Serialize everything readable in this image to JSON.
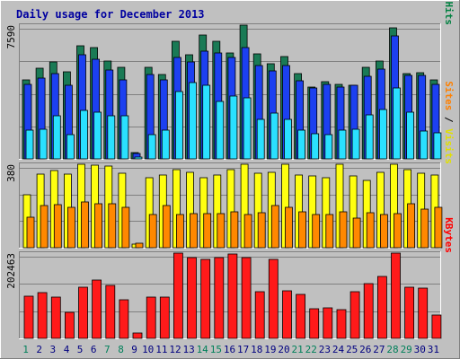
{
  "chart_data": {
    "type": "bar",
    "title": "Daily usage for December 2013",
    "categories": [
      "1",
      "2",
      "3",
      "4",
      "5",
      "6",
      "7",
      "8",
      "9",
      "10",
      "11",
      "12",
      "13",
      "14",
      "15",
      "16",
      "17",
      "18",
      "19",
      "20",
      "21",
      "22",
      "23",
      "24",
      "25",
      "26",
      "27",
      "28",
      "29",
      "30",
      "31"
    ],
    "weekend_days": [
      "1",
      "7",
      "8",
      "14",
      "15",
      "21",
      "22",
      "28",
      "29"
    ],
    "panels": [
      {
        "id": "hits-files-pages",
        "ylim": [
          0,
          7590
        ],
        "max_label": "7590",
        "axis_label_parts": [
          {
            "text": "Pages",
            "color": "#00e0ff"
          },
          {
            "text": " / ",
            "color": "#000000"
          },
          {
            "text": "Files",
            "color": "#0040ff"
          },
          {
            "text": " / ",
            "color": "#000000"
          },
          {
            "text": "Hits",
            "color": "#008040"
          }
        ],
        "series": [
          {
            "name": "Hits",
            "color": "#1a7a55",
            "values": [
              4500,
              5150,
              5500,
              4950,
              6400,
              6300,
              5550,
              5200,
              380,
              5200,
              4800,
              6650,
              5900,
              7050,
              6650,
              6000,
              7590,
              5950,
              5400,
              5800,
              4850,
              4050,
              4400,
              4250,
              4200,
              5200,
              5550,
              7450,
              4850,
              4900,
              4500
            ]
          },
          {
            "name": "Files",
            "color": "#1c40f0",
            "values": [
              4250,
              4600,
              4850,
              4200,
              5900,
              5650,
              5050,
              4500,
              330,
              4800,
              4500,
              5750,
              5500,
              6100,
              6000,
              5750,
              6300,
              5300,
              5000,
              5300,
              4450,
              4000,
              4250,
              4100,
              4200,
              4700,
              5100,
              7000,
              4750,
              4750,
              4250
            ]
          },
          {
            "name": "Pages",
            "color": "#2ae0ff",
            "values": [
              1650,
              1700,
              2450,
              1400,
              2750,
              2650,
              2450,
              2450,
              110,
              1400,
              1650,
              3800,
              4350,
              4200,
              3250,
              3550,
              3450,
              2250,
              2600,
              2250,
              1650,
              1450,
              1400,
              1650,
              1700,
              2500,
              2800,
              4000,
              2650,
              1600,
              1500
            ]
          }
        ]
      },
      {
        "id": "visits-sites",
        "ylim": [
          0,
          380
        ],
        "max_label": "380",
        "axis_label_parts": [
          {
            "text": "Sites",
            "color": "#ff8000"
          },
          {
            "text": " / ",
            "color": "#000000"
          },
          {
            "text": "Visits",
            "color": "#e0e000"
          }
        ],
        "series": [
          {
            "name": "Visits",
            "color": "#ffff10",
            "values": [
              240,
              335,
              350,
              335,
              380,
              375,
              370,
              340,
              17,
              320,
              330,
              355,
              345,
              320,
              330,
              355,
              380,
              340,
              345,
              380,
              330,
              325,
              320,
              380,
              325,
              305,
              345,
              380,
              355,
              340,
              330
            ]
          },
          {
            "name": "Sites",
            "color": "#ff8800",
            "values": [
              138,
              190,
              195,
              185,
              210,
              200,
              200,
              185,
              20,
              150,
              190,
              150,
              155,
              155,
              155,
              165,
              150,
              160,
              190,
              185,
              165,
              150,
              150,
              165,
              135,
              160,
              150,
              155,
              200,
              175,
              185
            ]
          }
        ]
      },
      {
        "id": "kbytes",
        "ylim": [
          0,
          202463
        ],
        "max_label": "202463",
        "axis_label_parts": [
          {
            "text": "KBytes",
            "color": "#ff0000"
          }
        ],
        "series": [
          {
            "name": "KBytes",
            "color": "#ff1a1a",
            "values": [
              100500,
              108000,
              97600,
              62000,
              121200,
              138000,
              126300,
              92300,
              12000,
              97600,
              97600,
              202463,
              191500,
              188000,
              191500,
              200800,
              191500,
              111000,
              188000,
              113200,
              105000,
              71000,
              73000,
              68500,
              110500,
              130000,
              148000,
              202463,
              122000,
              119300,
              56000
            ]
          }
        ]
      }
    ]
  }
}
